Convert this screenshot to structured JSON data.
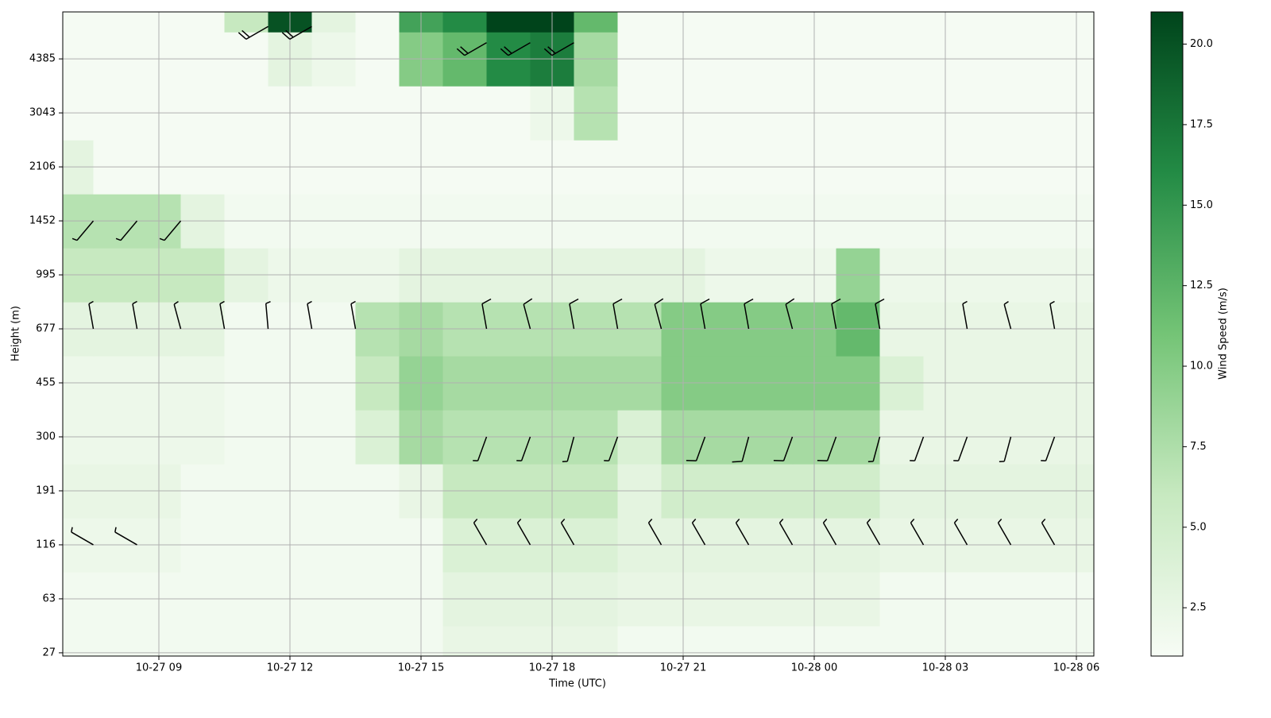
{
  "chart_data": {
    "type": "heatmap",
    "x_label": "Time (UTC)",
    "y_label": "Height (m)",
    "colorbar_label": "Wind Speed (m/s)",
    "colormap": [
      "#f7fcf5",
      "#c7e9c0",
      "#74c476",
      "#238b45",
      "#00441b"
    ],
    "grid": true,
    "xlim": [
      6.8,
      30.4
    ],
    "xticks": [
      {
        "value": 9,
        "label": "10-27 09"
      },
      {
        "value": 12,
        "label": "10-27 12"
      },
      {
        "value": 15,
        "label": "10-27 15"
      },
      {
        "value": 18,
        "label": "10-27 18"
      },
      {
        "value": 21,
        "label": "10-27 21"
      },
      {
        "value": 24,
        "label": "10-28 00"
      },
      {
        "value": 27,
        "label": "10-28 03"
      },
      {
        "value": 30,
        "label": "10-28 06"
      }
    ],
    "ylim": [
      -0.06,
      11.87
    ],
    "yticks": [
      {
        "value": 0,
        "label": "27"
      },
      {
        "value": 1,
        "label": "63"
      },
      {
        "value": 2,
        "label": "116"
      },
      {
        "value": 3,
        "label": "191"
      },
      {
        "value": 4,
        "label": "300"
      },
      {
        "value": 5,
        "label": "455"
      },
      {
        "value": 6,
        "label": "677"
      },
      {
        "value": 7,
        "label": "995"
      },
      {
        "value": 8,
        "label": "1452"
      },
      {
        "value": 9,
        "label": "2106"
      },
      {
        "value": 10,
        "label": "3043"
      },
      {
        "value": 11,
        "label": "4385"
      }
    ],
    "clim": [
      1,
      21
    ],
    "cticks": [
      {
        "value": 2.5,
        "label": "2.5"
      },
      {
        "value": 5,
        "label": "5.0"
      },
      {
        "value": 7.5,
        "label": "7.5"
      },
      {
        "value": 10,
        "label": "10.0"
      },
      {
        "value": 12.5,
        "label": "12.5"
      },
      {
        "value": 15,
        "label": "15.0"
      },
      {
        "value": 17.5,
        "label": "17.5"
      },
      {
        "value": 20,
        "label": "20.0"
      }
    ],
    "x": [
      7,
      8,
      9,
      10,
      11,
      12,
      13,
      14,
      15,
      16,
      17,
      18,
      19,
      20,
      21,
      22,
      23,
      24,
      25,
      26,
      27,
      28,
      29,
      30
    ],
    "y": [
      0,
      1,
      2,
      3,
      4,
      5,
      6,
      7,
      8,
      9,
      10,
      11,
      12
    ],
    "values": [
      [
        1.5,
        1.5,
        1.5,
        1.5,
        1.5,
        1.5,
        1.5,
        1.5,
        1.5,
        2.5,
        2.5,
        2.5,
        2.5,
        1.5,
        1.5,
        1.5,
        1.5,
        1.5,
        1.5,
        1.5,
        1.5,
        1.5,
        1.5,
        1.5
      ],
      [
        1.5,
        1.5,
        1.5,
        1.5,
        1.5,
        1.5,
        1.5,
        1.5,
        1.5,
        3,
        3,
        3,
        3,
        2.5,
        2.5,
        2.5,
        2.5,
        2.5,
        2.5,
        1.5,
        1.5,
        1.5,
        1.5,
        1.5
      ],
      [
        2,
        2,
        2,
        1.5,
        1.5,
        1.5,
        1.5,
        1.5,
        1.5,
        4,
        4,
        4,
        4,
        3,
        3,
        3,
        3,
        3,
        3,
        2.5,
        2.5,
        2.5,
        2.5,
        2.5
      ],
      [
        2.5,
        2.5,
        2.5,
        1.5,
        1.5,
        1.5,
        1.5,
        1.5,
        2.5,
        6,
        6,
        6,
        6,
        3,
        5,
        5,
        5,
        5,
        5,
        3,
        3,
        3,
        3,
        3
      ],
      [
        2,
        2,
        2,
        2,
        1.5,
        1.5,
        1.5,
        4,
        8,
        7,
        7,
        7,
        7,
        4,
        8,
        8,
        8,
        8,
        8,
        2.5,
        2.5,
        2.5,
        2.5,
        2.5
      ],
      [
        2,
        2,
        2,
        2,
        1.5,
        1.5,
        1.5,
        6,
        9,
        8,
        8,
        8,
        8,
        8,
        10,
        10,
        10,
        10,
        10,
        4,
        2.5,
        2.5,
        2.5,
        2.5
      ],
      [
        3,
        3,
        3,
        3,
        1.5,
        1.5,
        1.5,
        7,
        8,
        7,
        7,
        7,
        7,
        7,
        10,
        10,
        10,
        10,
        12,
        2.5,
        2.5,
        2.5,
        2.5,
        2.5
      ],
      [
        6,
        6,
        6,
        6,
        3,
        2,
        2,
        2,
        3,
        3,
        3,
        3,
        3,
        3,
        3,
        2,
        2,
        2,
        9,
        2,
        2,
        2,
        2,
        2
      ],
      [
        7,
        7,
        7,
        3,
        1.5,
        1.5,
        1.5,
        1.5,
        1.5,
        1.5,
        1.5,
        1.5,
        1.5,
        1.5,
        1.5,
        1.5,
        1.5,
        1.5,
        1.5,
        1.5,
        1.5,
        1.5,
        1.5,
        1.5
      ],
      [
        3,
        1.2,
        1.2,
        1.2,
        1.2,
        1.2,
        1.2,
        1.2,
        1.2,
        1.2,
        1.2,
        1.2,
        1.2,
        1.2,
        1.2,
        1.2,
        1.2,
        1.2,
        1.2,
        1.2,
        1.2,
        1.2,
        1.2,
        1.2
      ],
      [
        1.2,
        1.2,
        1.2,
        1.2,
        1.2,
        1.2,
        1.2,
        1.2,
        1.2,
        1.2,
        1.2,
        2,
        7,
        1.2,
        1.2,
        1.2,
        1.2,
        1.2,
        1.2,
        1.2,
        1.2,
        1.2,
        1.2,
        1.2
      ],
      [
        1.2,
        1.2,
        1.2,
        1.2,
        1.2,
        3,
        2,
        1.2,
        10,
        12,
        16,
        17,
        8,
        1.2,
        1.2,
        1.2,
        1.2,
        1.2,
        1.2,
        1.2,
        1.2,
        1.2,
        1.2,
        1.2
      ],
      [
        1.2,
        1.2,
        1.2,
        1.2,
        6,
        20,
        3,
        1.2,
        14,
        16,
        21,
        21,
        12,
        1.2,
        1.2,
        1.2,
        1.2,
        1.2,
        1.2,
        1.2,
        1.2,
        1.2,
        1.2,
        1.2
      ]
    ],
    "barbs": {
      "x": [
        7.5,
        8.5,
        9.5,
        10.5,
        11.5,
        12.5,
        13.5,
        16.5,
        17.5,
        18.5,
        19.5,
        20.5,
        21.5,
        22.5,
        23.5,
        24.5,
        25.5,
        27.5,
        28.5,
        29.5,
        16.5,
        17.5,
        18.5,
        19.5,
        21.5,
        22.5,
        23.5,
        24.5,
        25.5,
        26.5,
        27.5,
        28.5,
        29.5,
        7.5,
        8.5,
        16.5,
        17.5,
        18.5,
        20.5,
        21.5,
        22.5,
        23.5,
        24.5,
        25.5,
        26.5,
        27.5,
        28.5,
        29.5,
        7.5,
        8.5,
        9.5,
        11.5,
        12.5,
        16.5,
        17.5,
        18.5
      ],
      "y": [
        6,
        6,
        6,
        6,
        6,
        6,
        6,
        6,
        6,
        6,
        6,
        6,
        6,
        6,
        6,
        6,
        6,
        6,
        6,
        6,
        4,
        4,
        4,
        4,
        4,
        4,
        4,
        4,
        4,
        4,
        4,
        4,
        4,
        2,
        2,
        2,
        2,
        2,
        2,
        2,
        2,
        2,
        2,
        2,
        2,
        2,
        2,
        2,
        8,
        8,
        8,
        11.6,
        11.6,
        11.3,
        11.3,
        11.3
      ],
      "direction": [
        350,
        350,
        345,
        350,
        355,
        350,
        350,
        350,
        345,
        350,
        350,
        345,
        350,
        350,
        345,
        350,
        350,
        350,
        345,
        350,
        200,
        200,
        195,
        200,
        200,
        195,
        200,
        200,
        195,
        200,
        200,
        195,
        200,
        300,
        300,
        330,
        330,
        330,
        330,
        330,
        330,
        330,
        330,
        330,
        330,
        330,
        330,
        330,
        220,
        220,
        220,
        240,
        240,
        240,
        240,
        240
      ],
      "speed": [
        8,
        8,
        8,
        8,
        6,
        6,
        6,
        10,
        10,
        10,
        10,
        10,
        12,
        12,
        12,
        12,
        12,
        6,
        6,
        6,
        8,
        8,
        8,
        8,
        10,
        10,
        10,
        10,
        8,
        5,
        5,
        5,
        5,
        5,
        5,
        6,
        6,
        6,
        6,
        6,
        6,
        6,
        6,
        6,
        5,
        5,
        5,
        5,
        8,
        8,
        8,
        20,
        20,
        22,
        22,
        22
      ]
    }
  }
}
